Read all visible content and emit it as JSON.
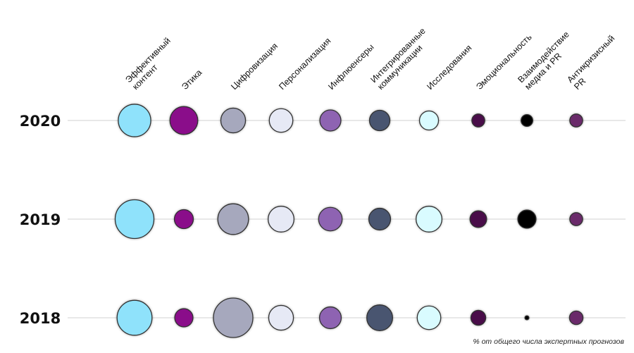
{
  "chart_data": {
    "type": "bubble-grid",
    "title": "",
    "categories": [
      "Эффективный\nконтент",
      "Этика",
      "Цифровизация",
      "Персонализация",
      "Инфлюенсеры",
      "Интегрированные\nкоммуникации",
      "Исследования",
      "Эмоциональность",
      "Взаимодействие\nмедиа и PR",
      "Антикризисный\nPR"
    ],
    "category_colors": [
      "#8fe2fb",
      "#8a0a8a",
      "#a6a8bd",
      "#e6e9f5",
      "#8e63b2",
      "#4a5570",
      "#d9fbff",
      "#4a0a4a",
      "#000000",
      "#6a2a6a"
    ],
    "series": [
      {
        "name": "2020",
        "values": [
          19,
          14,
          11,
          10,
          8,
          7.5,
          6.5,
          3,
          2.5,
          3
        ]
      },
      {
        "name": "2019",
        "values": [
          27,
          6.5,
          17,
          12,
          10,
          8.5,
          12,
          5,
          6,
          3
        ]
      },
      {
        "name": "2018",
        "values": [
          22,
          6,
          28,
          11,
          8.5,
          12,
          10,
          4,
          0.3,
          3.3
        ]
      }
    ],
    "value_encoding": "bubble area (relative share, estimated)",
    "note": "% от  общего числа экспертных прогнозов"
  }
}
